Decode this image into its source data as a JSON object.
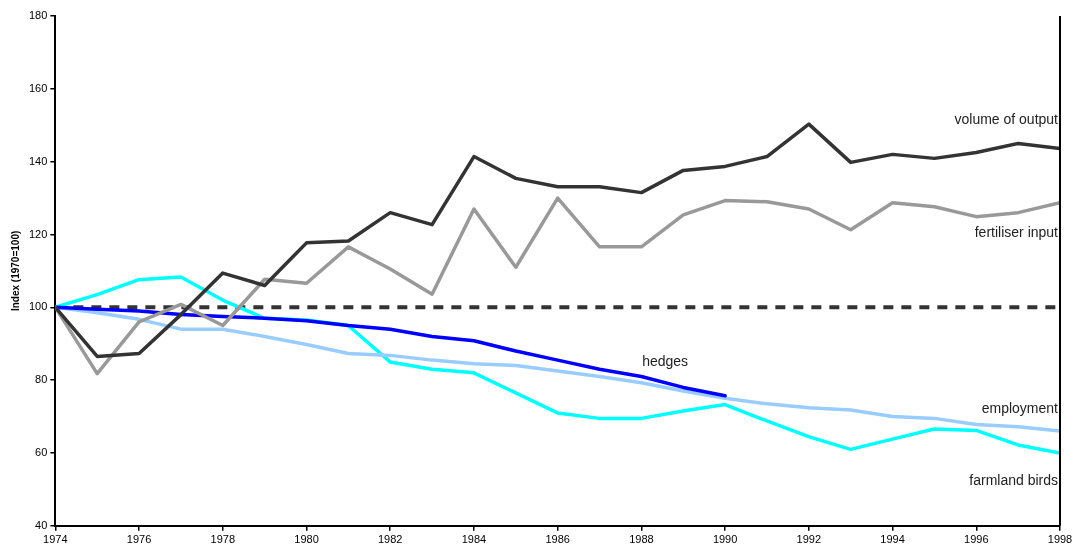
{
  "chart_data": {
    "type": "line",
    "ylabel": "Index (1970=100)",
    "xlim": [
      1974,
      1998
    ],
    "ylim": [
      40,
      180
    ],
    "xticks": [
      1974,
      1976,
      1978,
      1980,
      1982,
      1984,
      1986,
      1988,
      1990,
      1992,
      1994,
      1996,
      1998
    ],
    "yticks": [
      40,
      60,
      80,
      100,
      120,
      140,
      160,
      180
    ],
    "grid": false,
    "legend": false,
    "marker": "none",
    "line_style": "solid",
    "x": [
      1974,
      1975,
      1976,
      1977,
      1978,
      1979,
      1980,
      1981,
      1982,
      1983,
      1984,
      1985,
      1986,
      1987,
      1988,
      1989,
      1990,
      1991,
      1992,
      1993,
      1994,
      1995,
      1996,
      1997,
      1998
    ],
    "ref_lines": [
      {
        "axis": "y",
        "value": 100,
        "color": "#333333",
        "line_style": "dashed"
      }
    ],
    "series": [
      {
        "name": "volume of output",
        "color": "#333333",
        "values": [
          100,
          86.5,
          87.3,
          98,
          109.4,
          106,
          117.7,
          118.2,
          126,
          122.7,
          141.4,
          135.4,
          133.1,
          133.1,
          131.5,
          137.6,
          138.7,
          141.4,
          150.3,
          139.8,
          142,
          140.9,
          142.5,
          145,
          143.6
        ]
      },
      {
        "name": "fertiliser input",
        "color": "#999999",
        "values": [
          100,
          81.8,
          96,
          100.8,
          95,
          107.7,
          106.6,
          116.6,
          110.5,
          103.6,
          127,
          111,
          130,
          116.6,
          116.6,
          125.4,
          129.3,
          129,
          127,
          121.3,
          128.7,
          127.6,
          124.9,
          126,
          128.7
        ]
      },
      {
        "name": "hedges",
        "color": "#0000ff",
        "values": [
          100,
          99.5,
          99,
          98,
          97.5,
          97,
          96.3,
          95,
          94,
          92,
          90.8,
          88,
          85.5,
          83,
          81,
          78,
          75.7,
          null,
          null,
          null,
          null,
          null,
          null,
          null,
          null
        ]
      },
      {
        "name": "employment",
        "color": "#99ccff",
        "values": [
          100,
          98.5,
          96.7,
          94,
          94,
          92,
          89.8,
          87.3,
          86.8,
          85.5,
          84.5,
          84,
          82.5,
          81,
          79.3,
          77,
          75,
          73.5,
          72.4,
          71.8,
          70,
          69.5,
          67.8,
          67.2,
          66
        ]
      },
      {
        "name": "farmland birds",
        "color": "#00ffff",
        "values": [
          100,
          103.5,
          107.6,
          108.3,
          102,
          97,
          96.5,
          95,
          85,
          83,
          82,
          76.5,
          71,
          69.5,
          69.5,
          71.5,
          73.3,
          68.8,
          64.5,
          61,
          63.8,
          66.6,
          66.2,
          62.2,
          60
        ]
      }
    ]
  }
}
